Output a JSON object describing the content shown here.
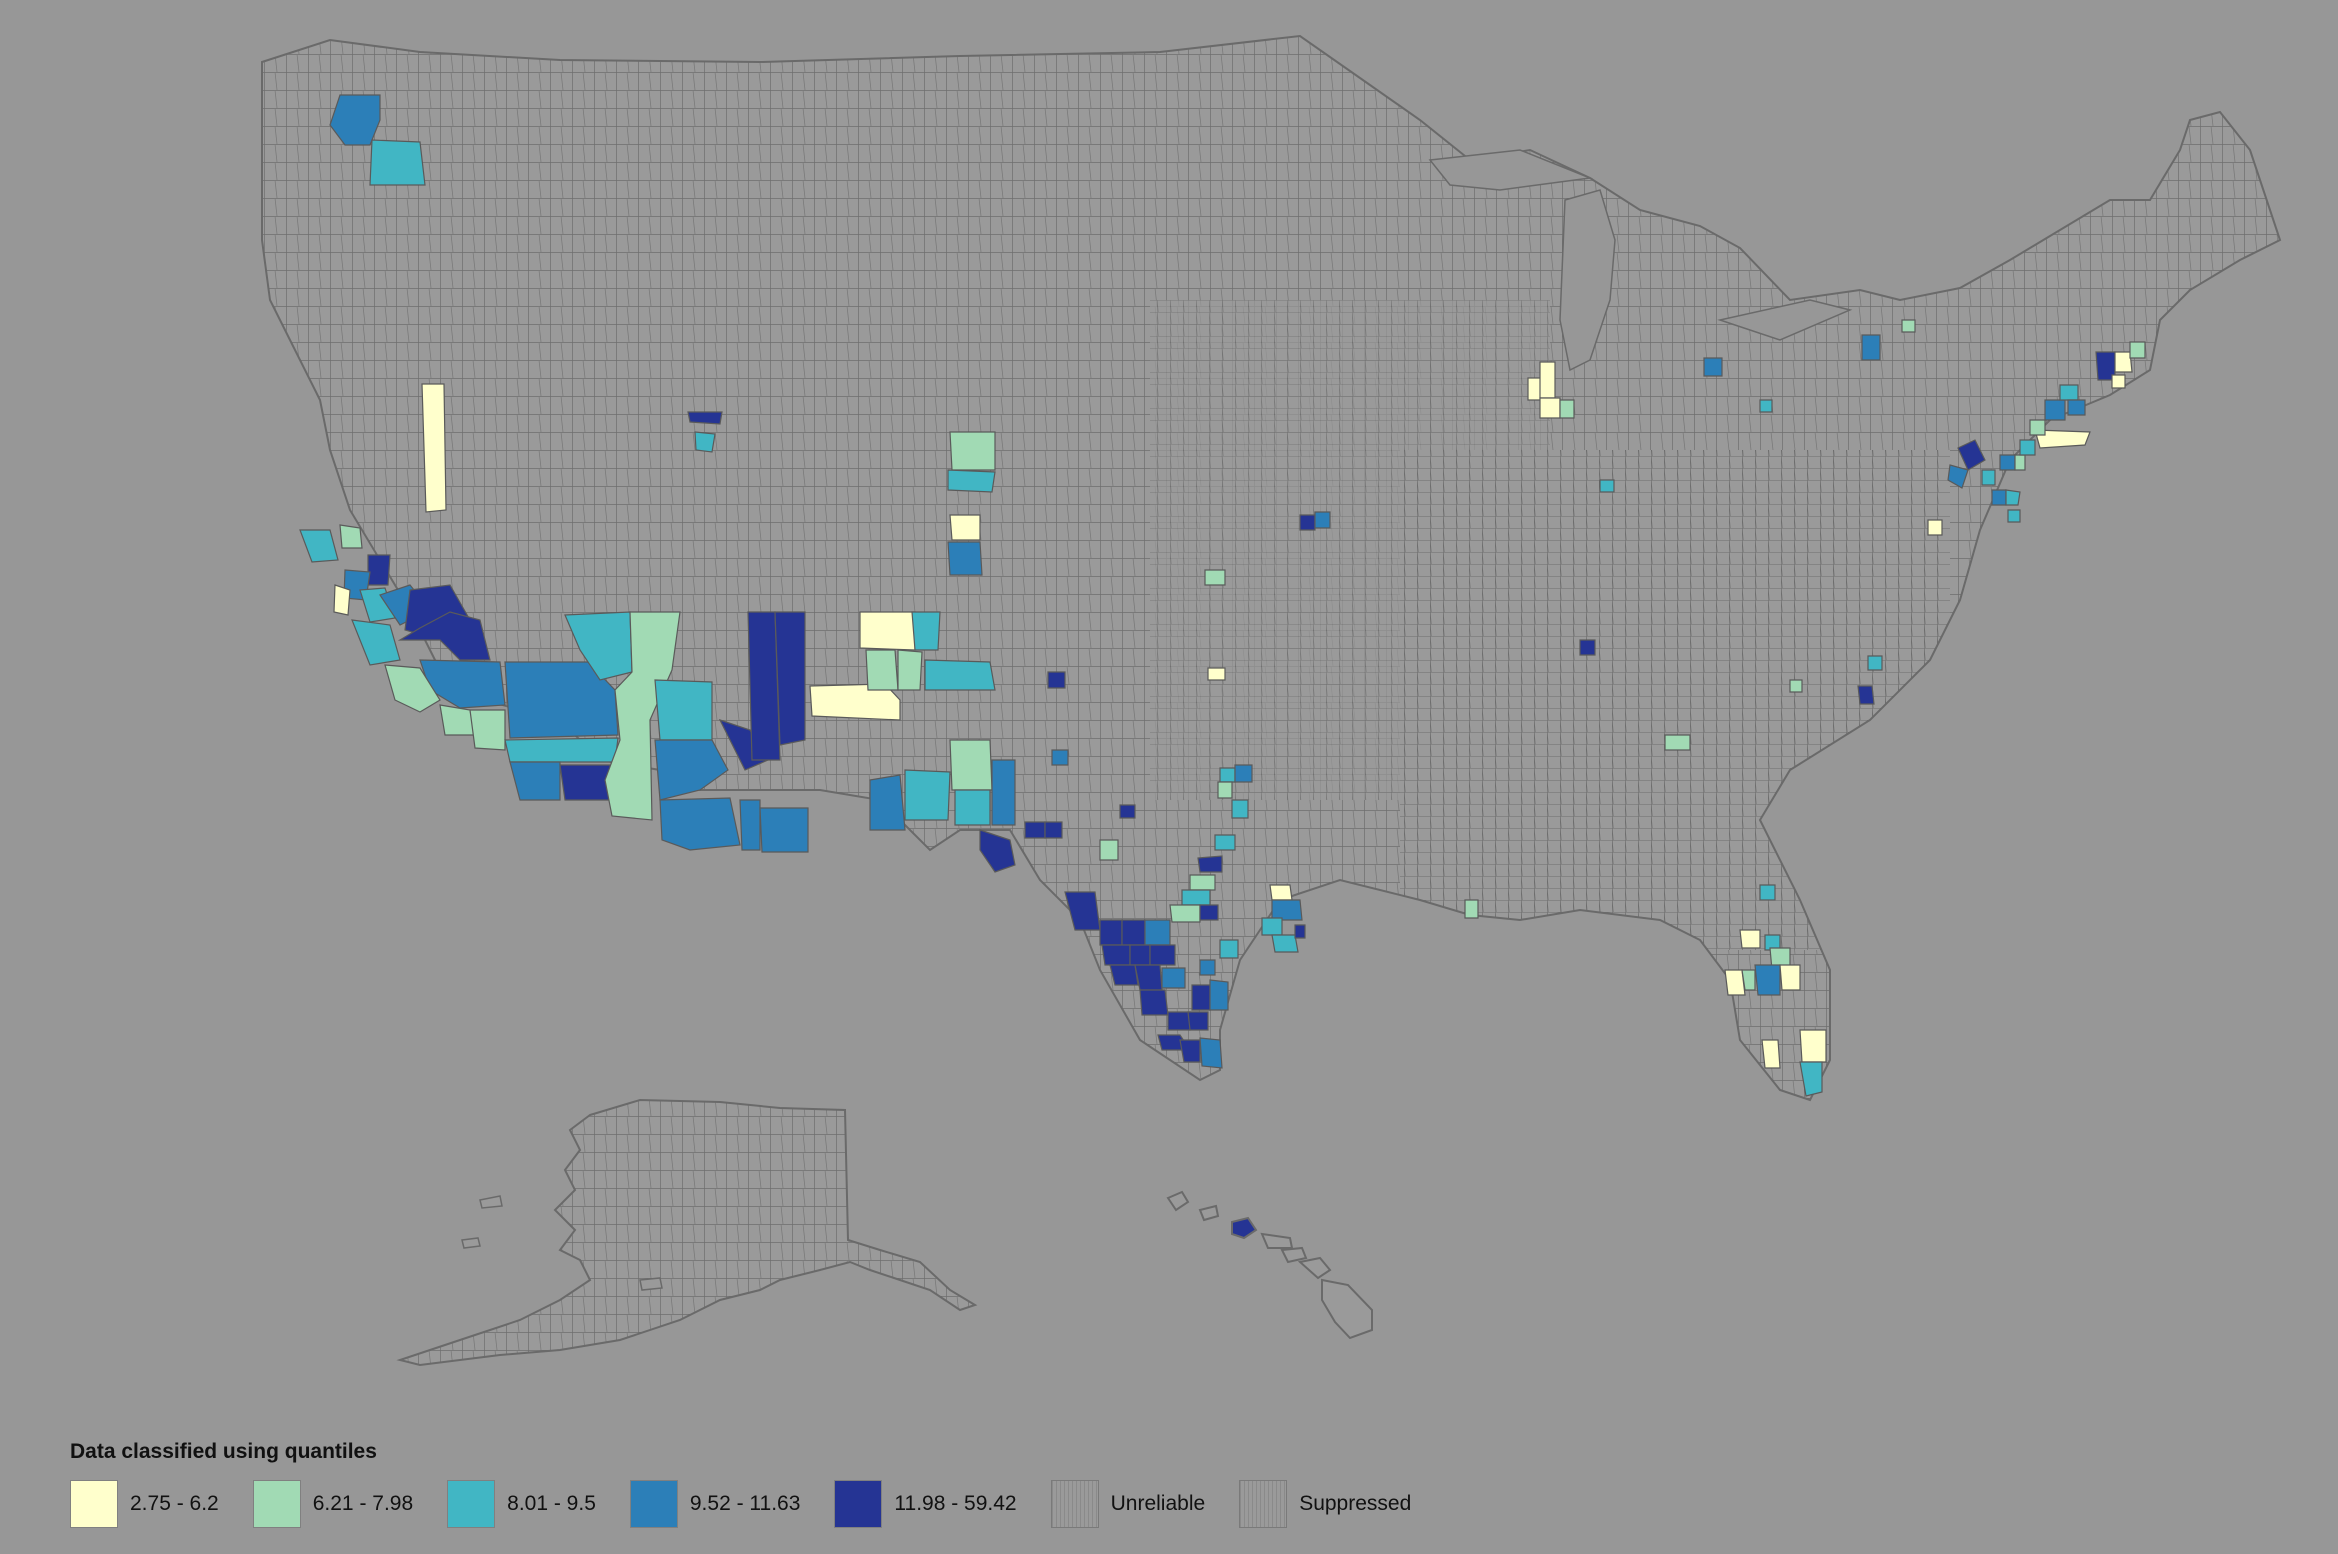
{
  "legend": {
    "title": "Data classified using quantiles",
    "items": [
      {
        "label": "2.75 - 6.2",
        "color": "#ffffcc",
        "pattern": "solid"
      },
      {
        "label": "6.21 - 7.98",
        "color": "#a1dab4",
        "pattern": "solid"
      },
      {
        "label": "8.01 - 9.5",
        "color": "#41b6c4",
        "pattern": "solid"
      },
      {
        "label": "9.52 - 11.63",
        "color": "#2c7fb8",
        "pattern": "solid"
      },
      {
        "label": "11.98 - 59.42",
        "color": "#253494",
        "pattern": "solid"
      },
      {
        "label": "Unreliable",
        "color": "#9a9a9a",
        "pattern": "hatched"
      },
      {
        "label": "Suppressed",
        "color": "#9a9a9a",
        "pattern": "hatched"
      }
    ]
  },
  "map": {
    "background_color": "#979797",
    "county_fill": "#9a9a9a",
    "county_border": "#6e6e6e",
    "regions": [
      "contiguous-us",
      "alaska",
      "hawaii"
    ]
  }
}
